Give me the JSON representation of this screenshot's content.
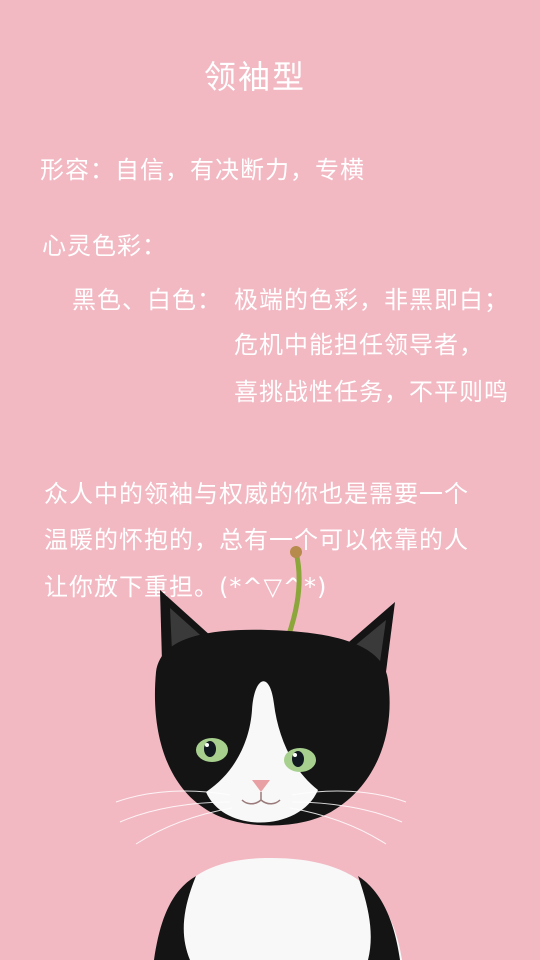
{
  "title": "领袖型",
  "description": "形容：自信，有决断力，专横",
  "heart_color_label": "心灵色彩：",
  "color_name": "黑色、白色：",
  "traits": [
    "极端的色彩，非黑即白；",
    "危机中能担任领导者，",
    "喜挑战性任务，不平则鸣"
  ],
  "paragraph": [
    "众人中的领袖与权威的你也是需要一个",
    "温暖的怀抱的，总有一个可以依靠的人",
    "让你放下重担。(*^▽^*)"
  ],
  "colors": {
    "background": "#f2b9c3",
    "cherry": "#e81f1f",
    "cat_black": "#141414",
    "cat_white": "#f7f7f7"
  }
}
